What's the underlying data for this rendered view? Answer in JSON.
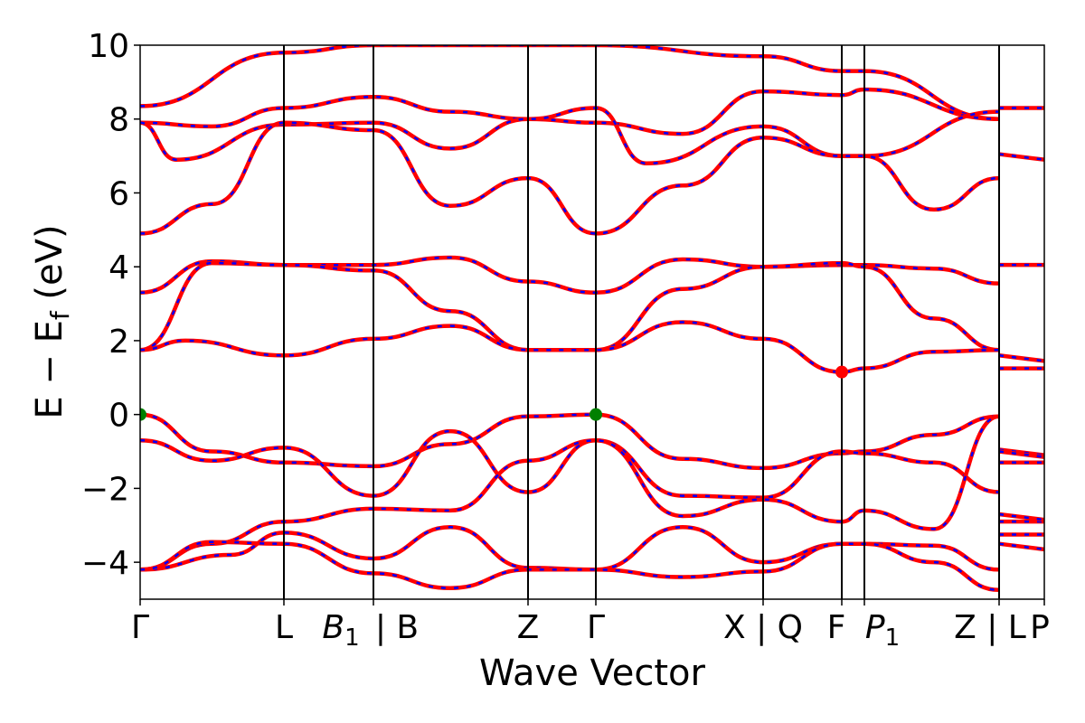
{
  "chart_data": {
    "type": "line",
    "title": "",
    "xlabel": "Wave Vector",
    "ylabel": "E − E",
    "ylabel_sub": "f",
    "ylabel_unit": " (eV)",
    "ylim": [
      -5,
      10
    ],
    "yticks": [
      10,
      8,
      6,
      4,
      2,
      0,
      -2,
      -4
    ],
    "ytick_labels": [
      "10",
      "8",
      "6",
      "4",
      "2",
      "0",
      "−2",
      "−4"
    ],
    "xlim": [
      0,
      1
    ],
    "grid": false,
    "legend": "none",
    "kpoints": [
      {
        "x": 0.0,
        "label": "Γ",
        "sub": ""
      },
      {
        "x": 0.159,
        "label": "L",
        "sub": ""
      },
      {
        "x": 0.258,
        "label": "B",
        "sub": "1",
        "italic": true
      },
      {
        "x": 0.258,
        "label": "| B",
        "sub": ""
      },
      {
        "x": 0.429,
        "label": "Z",
        "sub": ""
      },
      {
        "x": 0.504,
        "label": "Γ",
        "sub": ""
      },
      {
        "x": 0.689,
        "label": "X | Q",
        "sub": ""
      },
      {
        "x": 0.776,
        "label": "F",
        "sub": ""
      },
      {
        "x": 0.801,
        "label": "P",
        "sub": "1",
        "italic": true
      },
      {
        "x": 0.95,
        "label": "Z | L",
        "sub": ""
      },
      {
        "x": 1.0,
        "label": "P",
        "sub": ""
      }
    ],
    "vertical_lines_x": [
      0.159,
      0.258,
      0.429,
      0.504,
      0.689,
      0.776,
      0.801,
      0.95
    ],
    "band_colors": {
      "primary": "#ff0000",
      "secondary": "#0000ff"
    },
    "markers": [
      {
        "name": "vbm-1",
        "x": 0.0,
        "y": 0.0,
        "color": "#008000"
      },
      {
        "name": "vbm-2",
        "x": 0.504,
        "y": 0.0,
        "color": "#008000"
      },
      {
        "name": "cbm",
        "x": 0.776,
        "y": 1.15,
        "color": "#ff0000"
      }
    ],
    "series": [
      {
        "x": [
          0,
          0.159,
          0.258,
          0.429,
          0.504,
          0.689,
          0.776,
          0.801,
          0.95
        ],
        "values": [
          8.35,
          9.8,
          10.0,
          10.0,
          10.0,
          9.7,
          9.3,
          9.3,
          8.0
        ]
      },
      {
        "x": [
          0,
          0.079,
          0.159,
          0.258,
          0.343,
          0.429,
          0.504,
          0.6,
          0.689,
          0.776,
          0.801,
          0.95
        ],
        "values": [
          7.9,
          7.8,
          8.3,
          8.6,
          8.2,
          8.0,
          7.9,
          7.6,
          8.75,
          8.65,
          8.8,
          8.0
        ]
      },
      {
        "x": [
          0,
          0.04,
          0.159,
          0.258,
          0.343,
          0.429,
          0.504,
          0.56,
          0.689,
          0.776,
          0.801,
          0.95
        ],
        "values": [
          7.9,
          6.9,
          7.85,
          7.9,
          7.2,
          8.0,
          8.3,
          6.8,
          7.8,
          7.0,
          7.0,
          8.2
        ]
      },
      {
        "x": [
          0,
          0.08,
          0.159,
          0.258,
          0.343,
          0.429,
          0.504,
          0.6,
          0.689,
          0.776,
          0.801,
          0.878,
          0.95
        ],
        "values": [
          4.9,
          5.7,
          7.9,
          7.7,
          5.65,
          6.4,
          4.9,
          6.2,
          7.5,
          7.0,
          7.0,
          5.55,
          6.4
        ]
      },
      {
        "x": [
          0,
          0.079,
          0.159,
          0.258,
          0.343,
          0.429,
          0.504,
          0.6,
          0.689,
          0.776,
          0.801,
          0.878,
          0.95
        ],
        "values": [
          3.3,
          4.15,
          4.05,
          4.05,
          4.25,
          3.6,
          3.3,
          4.2,
          4.0,
          4.05,
          4.05,
          3.95,
          3.55
        ]
      },
      {
        "x": [
          0,
          0.079,
          0.159,
          0.258,
          0.343,
          0.429,
          0.504,
          0.6,
          0.689,
          0.776,
          0.801,
          0.878,
          0.95
        ],
        "values": [
          1.75,
          4.1,
          4.05,
          3.9,
          2.8,
          1.75,
          1.75,
          3.4,
          4.0,
          4.1,
          4.0,
          2.6,
          1.75
        ]
      },
      {
        "x": [
          0,
          0.05,
          0.159,
          0.258,
          0.343,
          0.429,
          0.504,
          0.6,
          0.689,
          0.776,
          0.801,
          0.878,
          0.95
        ],
        "values": [
          1.75,
          2.0,
          1.6,
          2.05,
          2.4,
          1.75,
          1.75,
          2.5,
          2.05,
          1.15,
          1.25,
          1.7,
          1.75
        ]
      },
      {
        "x": [
          0,
          0.079,
          0.159,
          0.258,
          0.343,
          0.429,
          0.504,
          0.6,
          0.689,
          0.776,
          0.801,
          0.878,
          0.95
        ],
        "values": [
          0.0,
          -1.0,
          -1.3,
          -1.4,
          -0.8,
          -0.05,
          0.0,
          -1.2,
          -1.45,
          -1.05,
          -1.0,
          -0.55,
          -0.05
        ]
      },
      {
        "x": [
          0,
          0.079,
          0.159,
          0.258,
          0.343,
          0.429,
          0.504,
          0.6,
          0.689,
          0.776,
          0.801,
          0.878,
          0.95
        ],
        "values": [
          -0.7,
          -1.25,
          -0.9,
          -2.2,
          -0.45,
          -2.1,
          -0.7,
          -2.2,
          -2.25,
          -1.0,
          -1.05,
          -1.3,
          -2.1
        ]
      },
      {
        "x": [
          0,
          0.079,
          0.159,
          0.258,
          0.343,
          0.429,
          0.504,
          0.6,
          0.689,
          0.776,
          0.801,
          0.878,
          0.95
        ],
        "values": [
          -4.2,
          -3.5,
          -2.9,
          -2.55,
          -2.6,
          -1.25,
          -0.7,
          -2.75,
          -2.3,
          -2.9,
          -2.6,
          -3.1,
          -0.05
        ]
      },
      {
        "x": [
          0,
          0.1,
          0.159,
          0.258,
          0.343,
          0.429,
          0.504,
          0.6,
          0.689,
          0.776,
          0.801,
          0.878,
          0.95
        ],
        "values": [
          -4.2,
          -3.8,
          -3.2,
          -3.9,
          -3.05,
          -4.15,
          -4.2,
          -3.05,
          -4.0,
          -3.5,
          -3.5,
          -3.55,
          -4.2
        ]
      },
      {
        "x": [
          0,
          0.079,
          0.159,
          0.258,
          0.343,
          0.429,
          0.504,
          0.6,
          0.689,
          0.776,
          0.801,
          0.878,
          0.95
        ],
        "values": [
          -4.2,
          -3.45,
          -3.5,
          -4.3,
          -4.7,
          -4.2,
          -4.2,
          -4.4,
          -4.25,
          -3.5,
          -3.5,
          -4.0,
          -4.75
        ]
      }
    ],
    "lp_segment_bands": [
      8.3,
      7.05,
      4.05,
      1.6,
      1.25,
      -0.95,
      -1.3,
      -1.0,
      -2.9,
      -2.7,
      -3.25,
      -3.5
    ]
  }
}
